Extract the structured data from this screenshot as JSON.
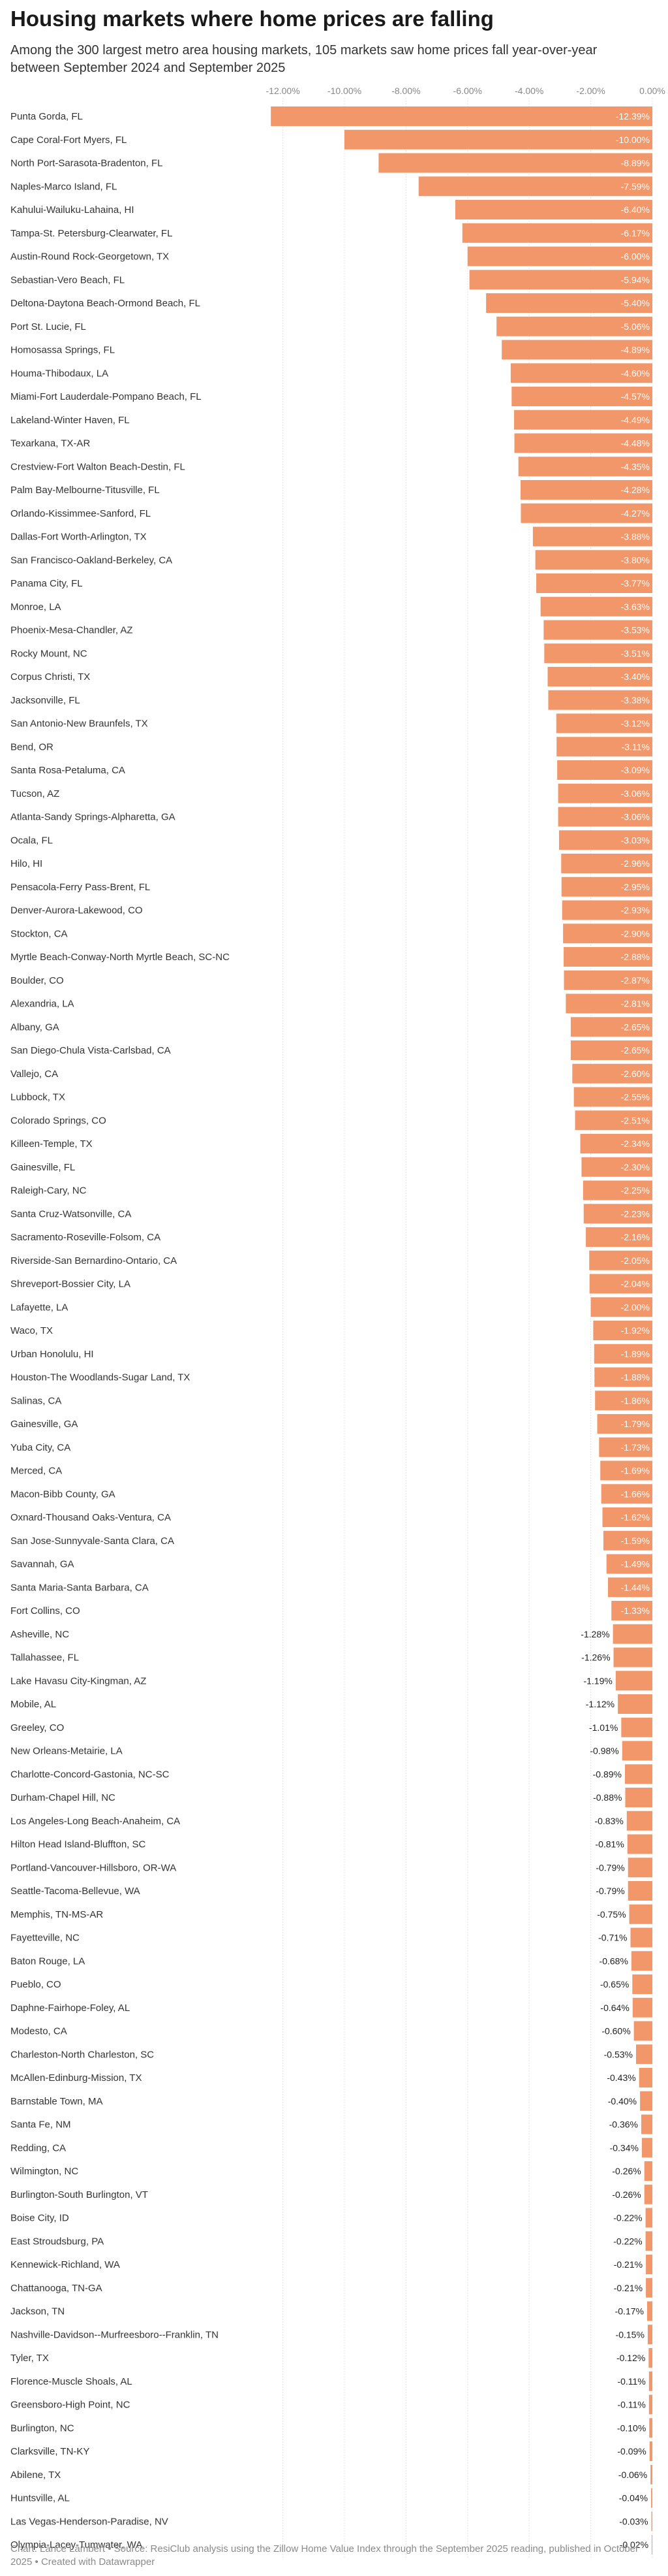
{
  "title": "Housing markets where home prices are falling",
  "subtitle": "Among the 300 largest metro area housing markets, 105 markets saw home prices fall year-over-year between September 2024 and September 2025",
  "footer": "Chart: Lance Lambert • Source: ResiClub analysis using the Zillow Home Value Index through the September 2025 reading, published in October 2025 • Created with Datawrapper",
  "colors": {
    "bar": "#F2976A",
    "grid": "#e4e4e4",
    "label": "#333333",
    "value_inside": "#ffffff",
    "value_outside": "#222222",
    "axis": "#888888"
  },
  "chart_data": {
    "type": "bar",
    "orientation": "horizontal",
    "xlim": [
      -12.5,
      0
    ],
    "ticks": [
      -12,
      -10,
      -8,
      -6,
      -4,
      -2,
      0
    ],
    "tick_labels": [
      "-12.00%",
      "-10.00%",
      "-8.00%",
      "-6.00%",
      "-4.00%",
      "-2.00%",
      "0.00%"
    ],
    "grid": true,
    "categories": [
      "Punta Gorda, FL",
      "Cape Coral-Fort Myers, FL",
      "North Port-Sarasota-Bradenton, FL",
      "Naples-Marco Island, FL",
      "Kahului-Wailuku-Lahaina, HI",
      "Tampa-St. Petersburg-Clearwater, FL",
      "Austin-Round Rock-Georgetown, TX",
      "Sebastian-Vero Beach, FL",
      "Deltona-Daytona Beach-Ormond Beach, FL",
      "Port St. Lucie, FL",
      "Homosassa Springs, FL",
      "Houma-Thibodaux, LA",
      "Miami-Fort Lauderdale-Pompano Beach, FL",
      "Lakeland-Winter Haven, FL",
      "Texarkana, TX-AR",
      "Crestview-Fort Walton Beach-Destin, FL",
      "Palm Bay-Melbourne-Titusville, FL",
      "Orlando-Kissimmee-Sanford, FL",
      "Dallas-Fort Worth-Arlington, TX",
      "San Francisco-Oakland-Berkeley, CA",
      "Panama City, FL",
      "Monroe, LA",
      "Phoenix-Mesa-Chandler, AZ",
      "Rocky Mount, NC",
      "Corpus Christi, TX",
      "Jacksonville, FL",
      "San Antonio-New Braunfels, TX",
      "Bend, OR",
      "Santa Rosa-Petaluma, CA",
      "Tucson, AZ",
      "Atlanta-Sandy Springs-Alpharetta, GA",
      "Ocala, FL",
      "Hilo, HI",
      "Pensacola-Ferry Pass-Brent, FL",
      "Denver-Aurora-Lakewood, CO",
      "Stockton, CA",
      "Myrtle Beach-Conway-North Myrtle Beach, SC-NC",
      "Boulder, CO",
      "Alexandria, LA",
      "Albany, GA",
      "San Diego-Chula Vista-Carlsbad, CA",
      "Vallejo, CA",
      "Lubbock, TX",
      "Colorado Springs, CO",
      "Killeen-Temple, TX",
      "Gainesville, FL",
      "Raleigh-Cary, NC",
      "Santa Cruz-Watsonville, CA",
      "Sacramento-Roseville-Folsom, CA",
      "Riverside-San Bernardino-Ontario, CA",
      "Shreveport-Bossier City, LA",
      "Lafayette, LA",
      "Waco, TX",
      "Urban Honolulu, HI",
      "Houston-The Woodlands-Sugar Land, TX",
      "Salinas, CA",
      "Gainesville, GA",
      "Yuba City, CA",
      "Merced, CA",
      "Macon-Bibb County, GA",
      "Oxnard-Thousand Oaks-Ventura, CA",
      "San Jose-Sunnyvale-Santa Clara, CA",
      "Savannah, GA",
      "Santa Maria-Santa Barbara, CA",
      "Fort Collins, CO",
      "Asheville, NC",
      "Tallahassee, FL",
      "Lake Havasu City-Kingman, AZ",
      "Mobile, AL",
      "Greeley, CO",
      "New Orleans-Metairie, LA",
      "Charlotte-Concord-Gastonia, NC-SC",
      "Durham-Chapel Hill, NC",
      "Los Angeles-Long Beach-Anaheim, CA",
      "Hilton Head Island-Bluffton, SC",
      "Portland-Vancouver-Hillsboro, OR-WA",
      "Seattle-Tacoma-Bellevue, WA",
      "Memphis, TN-MS-AR",
      "Fayetteville, NC",
      "Baton Rouge, LA",
      "Pueblo, CO",
      "Daphne-Fairhope-Foley, AL",
      "Modesto, CA",
      "Charleston-North Charleston, SC",
      "McAllen-Edinburg-Mission, TX",
      "Barnstable Town, MA",
      "Santa Fe, NM",
      "Redding, CA",
      "Wilmington, NC",
      "Burlington-South Burlington, VT",
      "Boise City, ID",
      "East Stroudsburg, PA",
      "Kennewick-Richland, WA",
      "Chattanooga, TN-GA",
      "Jackson, TN",
      "Nashville-Davidson--Murfreesboro--Franklin, TN",
      "Tyler, TX",
      "Florence-Muscle Shoals, AL",
      "Greensboro-High Point, NC",
      "Burlington, NC",
      "Clarksville, TN-KY",
      "Abilene, TX",
      "Huntsville, AL",
      "Las Vegas-Henderson-Paradise, NV",
      "Olympia-Lacey-Tumwater, WA"
    ],
    "values": [
      -12.39,
      -10.0,
      -8.89,
      -7.59,
      -6.4,
      -6.17,
      -6.0,
      -5.94,
      -5.4,
      -5.06,
      -4.89,
      -4.6,
      -4.57,
      -4.49,
      -4.48,
      -4.35,
      -4.28,
      -4.27,
      -3.88,
      -3.8,
      -3.77,
      -3.63,
      -3.53,
      -3.51,
      -3.4,
      -3.38,
      -3.12,
      -3.11,
      -3.09,
      -3.06,
      -3.06,
      -3.03,
      -2.96,
      -2.95,
      -2.93,
      -2.9,
      -2.88,
      -2.87,
      -2.81,
      -2.65,
      -2.65,
      -2.6,
      -2.55,
      -2.51,
      -2.34,
      -2.3,
      -2.25,
      -2.23,
      -2.16,
      -2.05,
      -2.04,
      -2.0,
      -1.92,
      -1.89,
      -1.88,
      -1.86,
      -1.79,
      -1.73,
      -1.69,
      -1.66,
      -1.62,
      -1.59,
      -1.49,
      -1.44,
      -1.33,
      -1.28,
      -1.26,
      -1.19,
      -1.12,
      -1.01,
      -0.98,
      -0.89,
      -0.88,
      -0.83,
      -0.81,
      -0.79,
      -0.79,
      -0.75,
      -0.71,
      -0.68,
      -0.65,
      -0.64,
      -0.6,
      -0.53,
      -0.43,
      -0.4,
      -0.36,
      -0.34,
      -0.26,
      -0.26,
      -0.22,
      -0.22,
      -0.21,
      -0.21,
      -0.17,
      -0.15,
      -0.12,
      -0.11,
      -0.11,
      -0.1,
      -0.09,
      -0.06,
      -0.04,
      -0.03,
      -0.02
    ],
    "value_labels": [
      "-12.39%",
      "-10.00%",
      "-8.89%",
      "-7.59%",
      "-6.40%",
      "-6.17%",
      "-6.00%",
      "-5.94%",
      "-5.40%",
      "-5.06%",
      "-4.89%",
      "-4.60%",
      "-4.57%",
      "-4.49%",
      "-4.48%",
      "-4.35%",
      "-4.28%",
      "-4.27%",
      "-3.88%",
      "-3.80%",
      "-3.77%",
      "-3.63%",
      "-3.53%",
      "-3.51%",
      "-3.40%",
      "-3.38%",
      "-3.12%",
      "-3.11%",
      "-3.09%",
      "-3.06%",
      "-3.06%",
      "-3.03%",
      "-2.96%",
      "-2.95%",
      "-2.93%",
      "-2.90%",
      "-2.88%",
      "-2.87%",
      "-2.81%",
      "-2.65%",
      "-2.65%",
      "-2.60%",
      "-2.55%",
      "-2.51%",
      "-2.34%",
      "-2.30%",
      "-2.25%",
      "-2.23%",
      "-2.16%",
      "-2.05%",
      "-2.04%",
      "-2.00%",
      "-1.92%",
      "-1.89%",
      "-1.88%",
      "-1.86%",
      "-1.79%",
      "-1.73%",
      "-1.69%",
      "-1.66%",
      "-1.62%",
      "-1.59%",
      "-1.49%",
      "-1.44%",
      "-1.33%",
      "-1.28%",
      "-1.26%",
      "-1.19%",
      "-1.12%",
      "-1.01%",
      "-0.98%",
      "-0.89%",
      "-0.88%",
      "-0.83%",
      "-0.81%",
      "-0.79%",
      "-0.79%",
      "-0.75%",
      "-0.71%",
      "-0.68%",
      "-0.65%",
      "-0.64%",
      "-0.60%",
      "-0.53%",
      "-0.43%",
      "-0.40%",
      "-0.36%",
      "-0.34%",
      "-0.26%",
      "-0.26%",
      "-0.22%",
      "-0.22%",
      "-0.21%",
      "-0.21%",
      "-0.17%",
      "-0.15%",
      "-0.12%",
      "-0.11%",
      "-0.11%",
      "-0.10%",
      "-0.09%",
      "-0.06%",
      "-0.04%",
      "-0.03%",
      "-0.02%"
    ]
  }
}
